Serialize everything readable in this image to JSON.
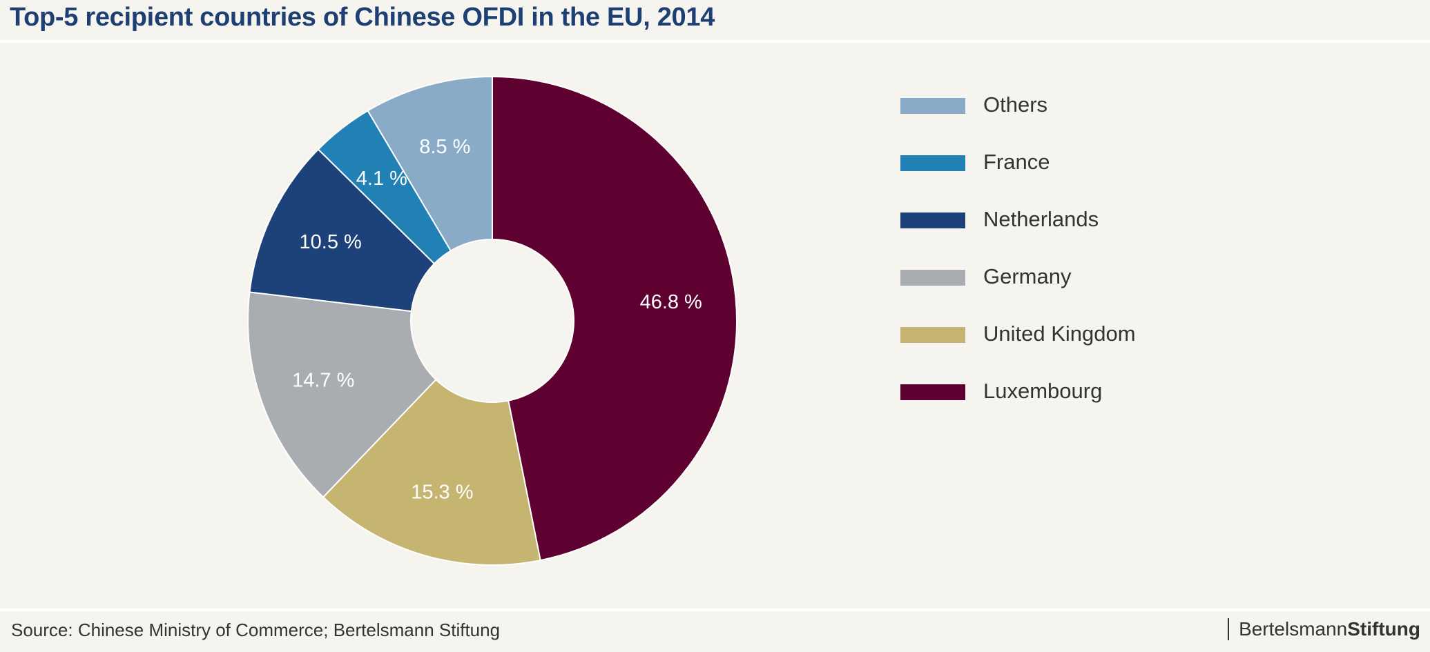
{
  "title": "Top-5 recipient countries of Chinese OFDI in the EU, 2014",
  "source": "Source: Chinese Ministry of Commerce; Bertelsmann Stiftung",
  "brand": {
    "regular": "Bertelsmann",
    "bold": "Stiftung"
  },
  "chart_data": {
    "type": "pie",
    "donut": true,
    "legend_position": "right",
    "slices": [
      {
        "label": "Luxembourg",
        "value": 46.8,
        "value_label": "46.8 %",
        "color": "#5e0030"
      },
      {
        "label": "United Kingdom",
        "value": 15.3,
        "value_label": "15.3 %",
        "color": "#c6b571"
      },
      {
        "label": "Germany",
        "value": 14.7,
        "value_label": "14.7 %",
        "color": "#a9acb0"
      },
      {
        "label": "Netherlands",
        "value": 10.5,
        "value_label": "10.5 %",
        "color": "#1d427a"
      },
      {
        "label": "France",
        "value": 4.1,
        "value_label": "4.1 %",
        "color": "#2281b4"
      },
      {
        "label": "Others",
        "value": 8.5,
        "value_label": "8.5 %",
        "color": "#8aabc8"
      }
    ],
    "legend_order": [
      "Others",
      "France",
      "Netherlands",
      "Germany",
      "United Kingdom",
      "Luxembourg"
    ]
  }
}
